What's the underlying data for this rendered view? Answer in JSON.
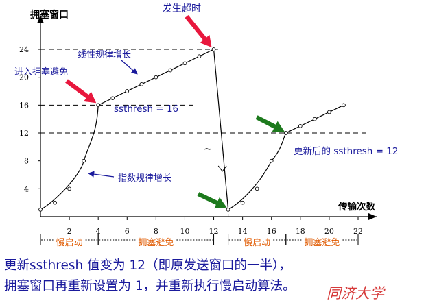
{
  "chart_data": {
    "type": "line",
    "xlabel": "传输次数",
    "ylabel": "拥塞窗口",
    "x_ticks": [
      2,
      4,
      6,
      8,
      10,
      12,
      14,
      16,
      18,
      20,
      22
    ],
    "y_ticks": [
      4,
      8,
      12,
      16,
      20,
      24
    ],
    "xlim": [
      0,
      22
    ],
    "ylim": [
      0,
      24
    ],
    "series": [
      {
        "points": [
          [
            0,
            1
          ],
          [
            1,
            2
          ],
          [
            2,
            4
          ],
          [
            3,
            8
          ],
          [
            4,
            16
          ],
          [
            5,
            17
          ],
          [
            6,
            18
          ],
          [
            7,
            19
          ],
          [
            8,
            20
          ],
          [
            9,
            21
          ],
          [
            10,
            22
          ],
          [
            11,
            23
          ],
          [
            12,
            24
          ],
          [
            13,
            1
          ],
          [
            14,
            2
          ],
          [
            15,
            4
          ],
          [
            16,
            8
          ],
          [
            17,
            12
          ],
          [
            18,
            13
          ],
          [
            19,
            14
          ],
          [
            20,
            15
          ],
          [
            21,
            16
          ]
        ]
      }
    ],
    "reference_lines": [
      24,
      16,
      12
    ],
    "annotations": {
      "linear_growth": "线性规律增长",
      "timeout": "发生超时",
      "congestion_avoidance_entry": "进入拥塞避免",
      "ssthresh_initial": "ssthresh = 16",
      "ssthresh_updated": "更新后的 ssthresh = 12",
      "exponential_growth": "指数规律增长",
      "tilde": "~"
    },
    "phases": [
      {
        "label": "慢启动",
        "from": 0,
        "to": 4
      },
      {
        "label": "拥塞避免",
        "from": 4,
        "to": 12
      },
      {
        "label": "慢启动",
        "from": 13,
        "to": 17
      },
      {
        "label": "拥塞避免",
        "from": 17,
        "to": 22
      }
    ],
    "colors": {
      "curve": "#000000",
      "annotation_text": "#1a1a9c",
      "phase_text": "#e05a00",
      "red_arrow": "#e8173d",
      "green_arrow": "#1d7a1d"
    }
  },
  "caption": {
    "line1": "更新ssthresh 值变为 12（即原发送窗口的一半），",
    "line2": "拥塞窗口再重新设置为 1，并重新执行慢启动算法。"
  },
  "logo": {
    "text": "同济大学",
    "icon": "university-logo"
  }
}
